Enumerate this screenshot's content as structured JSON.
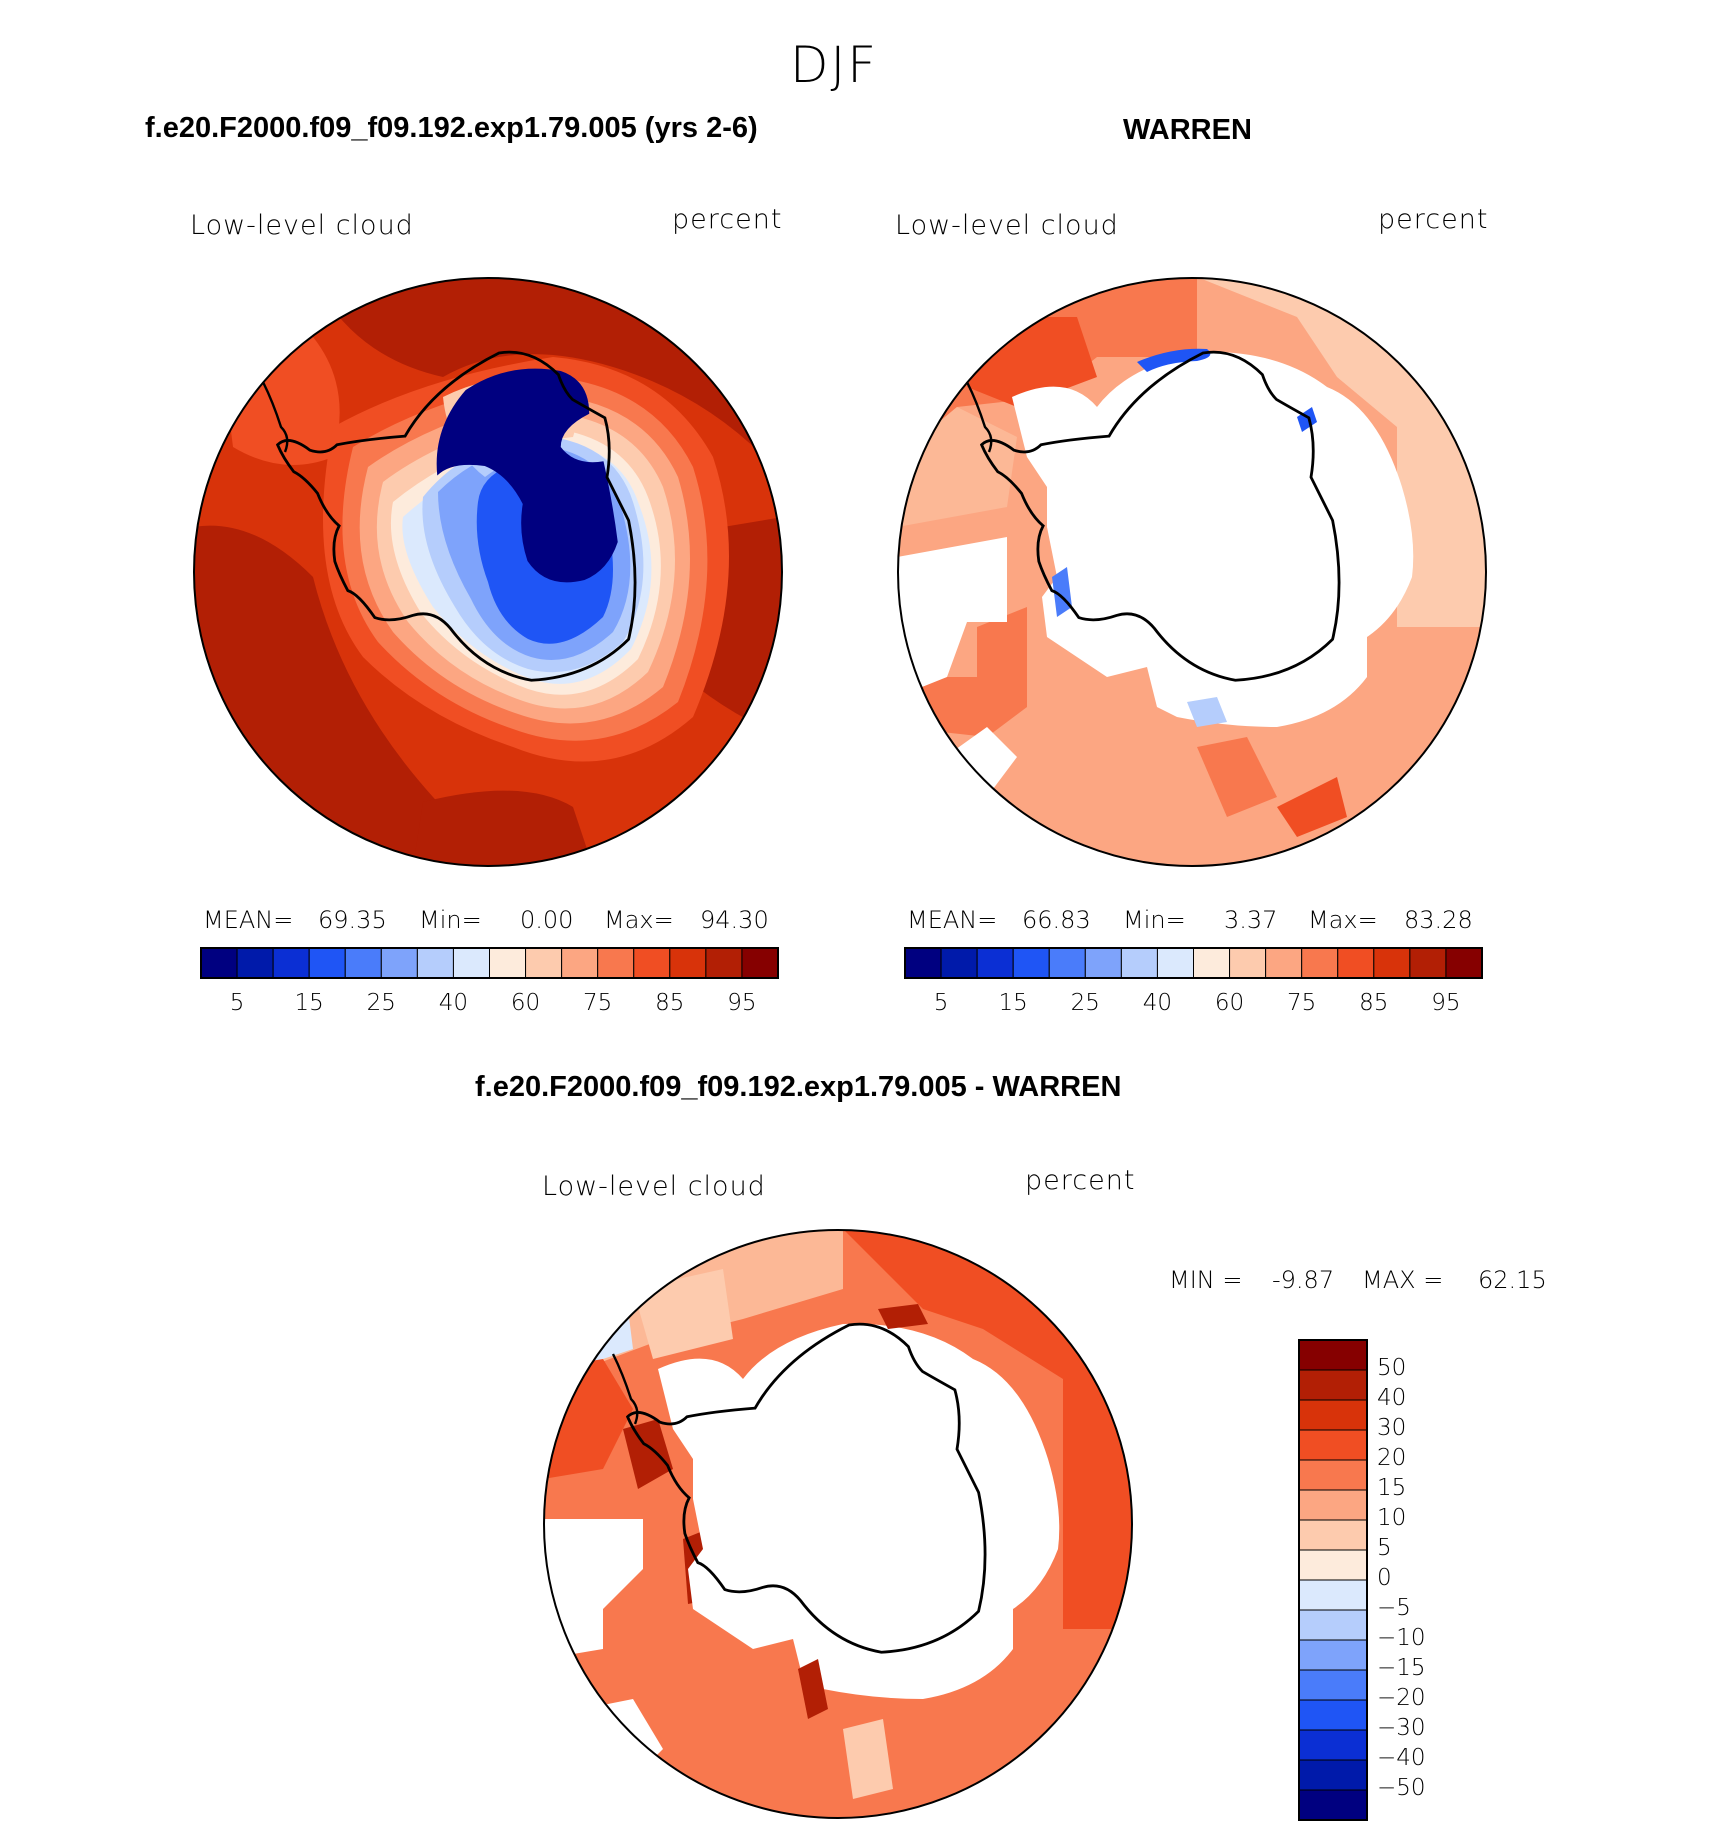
{
  "figure": {
    "season": "DJF",
    "top_left_title": "f.e20.F2000.f09_f09.192.exp1.79.005 (yrs 2-6)",
    "top_right_title": "WARREN",
    "bottom_title": "f.e20.F2000.f09_f09.192.exp1.79.005 - WARREN"
  },
  "panels": [
    {
      "variable": "Low-level cloud",
      "units": "percent",
      "stats": {
        "mean_label": "MEAN=",
        "mean": "69.35",
        "min_label": "Min=",
        "min": "0.00",
        "max_label": "Max=",
        "max": "94.30"
      }
    },
    {
      "variable": "Low-level cloud",
      "units": "percent",
      "stats": {
        "mean_label": "MEAN=",
        "mean": "66.83",
        "min_label": "Min=",
        "min": "3.37",
        "max_label": "Max=",
        "max": "83.28"
      }
    },
    {
      "variable": "Low-level cloud",
      "units": "percent",
      "stats": {
        "min_label": "MIN =",
        "min": "-9.87",
        "max_label": "MAX =",
        "max": "62.15"
      }
    }
  ],
  "abs_colorbar": {
    "colors": [
      "#000080",
      "#001aaa",
      "#0b2fd4",
      "#1f55f5",
      "#4a7cfa",
      "#7ea3fb",
      "#b5cdfc",
      "#dbe9fd",
      "#fdebdc",
      "#fdcbae",
      "#fca682",
      "#f8784e",
      "#f04e23",
      "#d8330a",
      "#b21f05",
      "#860000"
    ],
    "tick_labels": [
      "5",
      "15",
      "25",
      "40",
      "60",
      "75",
      "85",
      "95"
    ]
  },
  "diff_colorbar": {
    "colors": [
      "#860000",
      "#b21f05",
      "#d8330a",
      "#f04e23",
      "#f8784e",
      "#fca682",
      "#fdcbae",
      "#fdebdc",
      "#dbe9fd",
      "#b5cdfc",
      "#7ea3fb",
      "#4a7cfa",
      "#1f55f5",
      "#0b2fd4",
      "#001aaa",
      "#000080"
    ],
    "tick_labels": [
      "50",
      "40",
      "30",
      "20",
      "15",
      "10",
      "5",
      "0",
      "−5",
      "−10",
      "−15",
      "−20",
      "−30",
      "−40",
      "−50"
    ]
  },
  "map_colors": {
    "dark_red": "#b21f05",
    "red": "#d8330a",
    "orange_red": "#f04e23",
    "orange": "#f8784e",
    "salmon": "#fca682",
    "peach": "#fdcbae",
    "pale": "#fdebdc",
    "pale_blue": "#dbe9fd",
    "light_blue": "#b5cdfc",
    "navy": "#000080"
  }
}
